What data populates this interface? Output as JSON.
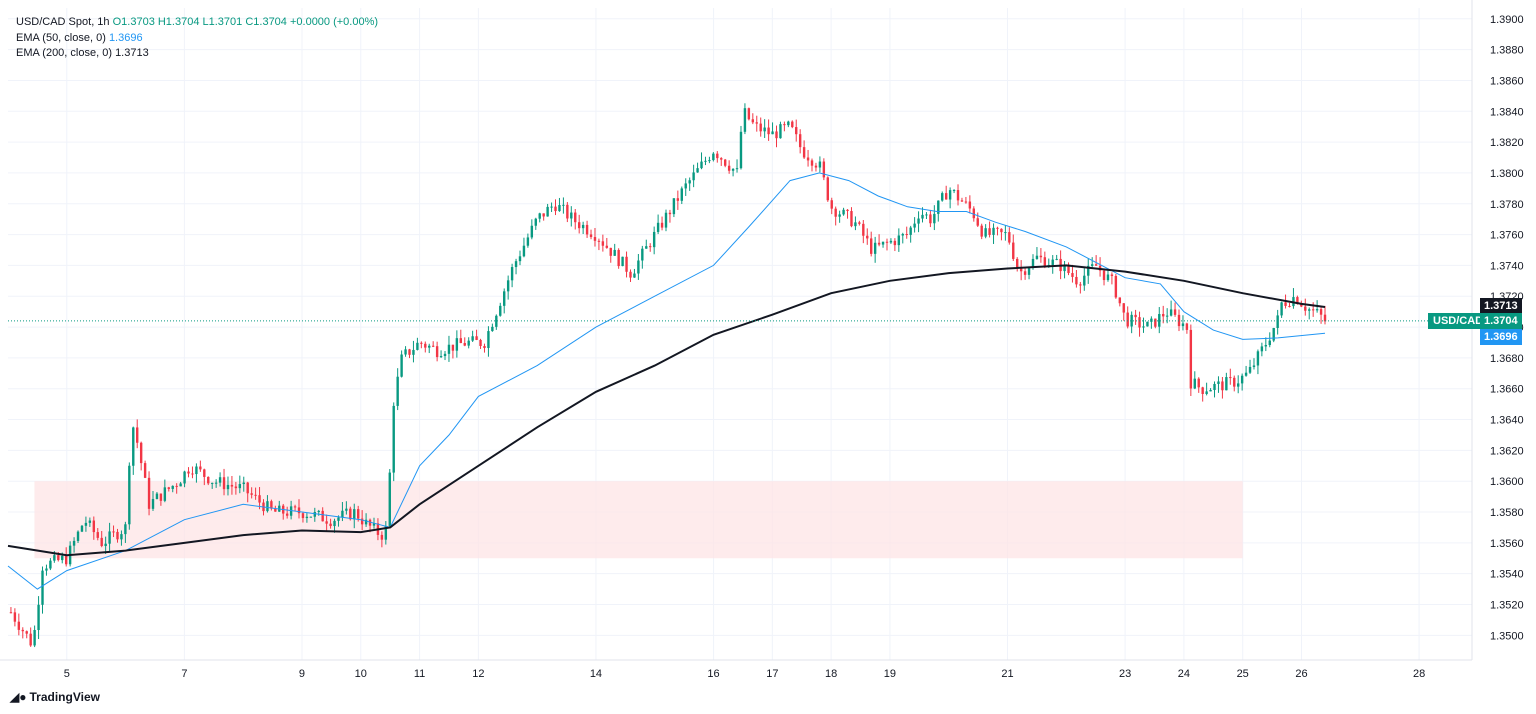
{
  "legend": {
    "symbol": "USD/CAD Spot, 1h",
    "ohlc": "O1.3703  H1.3704  L1.3701  C1.3704  +0.0000 (+0.00%)",
    "ema50_label": "EMA (50, close, 0)",
    "ema50_value": "1.3696",
    "ema200_label": "EMA (200, close, 0)",
    "ema200_value": "1.3713"
  },
  "tags": {
    "symbol": "USD/CAD",
    "price": "1.3704",
    "ema200": "1.3713",
    "ema50": "1.3696"
  },
  "branding": "TradingView",
  "colors": {
    "up": "#089981",
    "down": "#f23645",
    "ema50": "#2196f3",
    "ema200": "#131722",
    "zone": "#fde4e6",
    "grid": "#f0f3fa"
  },
  "chart_data": {
    "type": "candlestick",
    "title": "USD/CAD Spot, 1h",
    "ylim": [
      1.3484,
      1.3907
    ],
    "yticks": [
      "1.3500",
      "1.3520",
      "1.3540",
      "1.3560",
      "1.3580",
      "1.3600",
      "1.3620",
      "1.3640",
      "1.3660",
      "1.3680",
      "1.3700",
      "1.3720",
      "1.3740",
      "1.3760",
      "1.3780",
      "1.3800",
      "1.3820",
      "1.3840",
      "1.3860",
      "1.3880",
      "1.3900"
    ],
    "x_range_days": [
      4.0,
      28.9
    ],
    "xticks": [
      {
        "label": "5",
        "day": 5
      },
      {
        "label": "7",
        "day": 7
      },
      {
        "label": "9",
        "day": 9
      },
      {
        "label": "10",
        "day": 10
      },
      {
        "label": "11",
        "day": 11
      },
      {
        "label": "12",
        "day": 12
      },
      {
        "label": "14",
        "day": 14
      },
      {
        "label": "16",
        "day": 16
      },
      {
        "label": "17",
        "day": 17
      },
      {
        "label": "18",
        "day": 18
      },
      {
        "label": "19",
        "day": 19
      },
      {
        "label": "21",
        "day": 21
      },
      {
        "label": "23",
        "day": 23
      },
      {
        "label": "24",
        "day": 24
      },
      {
        "label": "25",
        "day": 25
      },
      {
        "label": "26",
        "day": 26
      },
      {
        "label": "28",
        "day": 28
      }
    ],
    "price_line": 1.3704,
    "support_zone": {
      "from_day": 4.45,
      "to_day": 25.0,
      "low": 1.355,
      "high": 1.36
    },
    "anchors": [
      [
        4.05,
        1.3515
      ],
      [
        4.4,
        1.3495
      ],
      [
        4.5,
        1.351
      ],
      [
        4.55,
        1.3545
      ],
      [
        5.0,
        1.355
      ],
      [
        5.3,
        1.3575
      ],
      [
        5.6,
        1.356
      ],
      [
        6.0,
        1.357
      ],
      [
        6.1,
        1.364
      ],
      [
        6.2,
        1.3625
      ],
      [
        6.4,
        1.3585
      ],
      [
        6.9,
        1.36
      ],
      [
        7.1,
        1.361
      ],
      [
        7.5,
        1.36
      ],
      [
        8.0,
        1.3595
      ],
      [
        8.5,
        1.358
      ],
      [
        9.0,
        1.358
      ],
      [
        9.5,
        1.3575
      ],
      [
        9.9,
        1.358
      ],
      [
        10.1,
        1.3572
      ],
      [
        10.35,
        1.3565
      ],
      [
        10.45,
        1.357
      ],
      [
        10.55,
        1.365
      ],
      [
        10.7,
        1.368
      ],
      [
        11.0,
        1.369
      ],
      [
        11.3,
        1.3685
      ],
      [
        11.8,
        1.369
      ],
      [
        12.1,
        1.369
      ],
      [
        12.3,
        1.371
      ],
      [
        12.6,
        1.374
      ],
      [
        13.0,
        1.377
      ],
      [
        13.3,
        1.378
      ],
      [
        13.6,
        1.377
      ],
      [
        14.0,
        1.376
      ],
      [
        14.6,
        1.3735
      ],
      [
        15.0,
        1.376
      ],
      [
        15.5,
        1.379
      ],
      [
        15.8,
        1.3805
      ],
      [
        16.0,
        1.3815
      ],
      [
        16.4,
        1.38
      ],
      [
        16.5,
        1.384
      ],
      [
        16.7,
        1.383
      ],
      [
        17.0,
        1.3825
      ],
      [
        17.3,
        1.383
      ],
      [
        17.5,
        1.3815
      ],
      [
        17.8,
        1.3805
      ],
      [
        18.0,
        1.3778
      ],
      [
        18.4,
        1.3768
      ],
      [
        18.7,
        1.375
      ],
      [
        19.0,
        1.3755
      ],
      [
        19.3,
        1.376
      ],
      [
        19.5,
        1.3775
      ],
      [
        19.7,
        1.377
      ],
      [
        20.0,
        1.379
      ],
      [
        20.4,
        1.3775
      ],
      [
        20.6,
        1.376
      ],
      [
        21.0,
        1.376
      ],
      [
        21.2,
        1.3735
      ],
      [
        21.5,
        1.3745
      ],
      [
        21.9,
        1.374
      ],
      [
        22.2,
        1.373
      ],
      [
        22.5,
        1.374
      ],
      [
        22.8,
        1.3728
      ],
      [
        23.0,
        1.3705
      ],
      [
        23.4,
        1.37
      ],
      [
        23.7,
        1.371
      ],
      [
        24.05,
        1.37
      ],
      [
        24.1,
        1.3665
      ],
      [
        24.3,
        1.366
      ],
      [
        24.6,
        1.3662
      ],
      [
        24.9,
        1.3665
      ],
      [
        25.1,
        1.367
      ],
      [
        25.4,
        1.369
      ],
      [
        25.6,
        1.3705
      ],
      [
        25.65,
        1.3715
      ],
      [
        25.9,
        1.372
      ],
      [
        26.1,
        1.3712
      ],
      [
        26.3,
        1.3708
      ],
      [
        26.4,
        1.3704
      ]
    ],
    "ema50": [
      [
        4.0,
        1.3545
      ],
      [
        4.5,
        1.353
      ],
      [
        5.0,
        1.3542
      ],
      [
        6.0,
        1.3555
      ],
      [
        7.0,
        1.3575
      ],
      [
        8.0,
        1.3585
      ],
      [
        9.0,
        1.358
      ],
      [
        10.0,
        1.3575
      ],
      [
        10.5,
        1.357
      ],
      [
        11.0,
        1.361
      ],
      [
        11.5,
        1.363
      ],
      [
        12.0,
        1.3655
      ],
      [
        13.0,
        1.3675
      ],
      [
        14.0,
        1.37
      ],
      [
        15.0,
        1.372
      ],
      [
        16.0,
        1.374
      ],
      [
        16.6,
        1.3765
      ],
      [
        17.3,
        1.3795
      ],
      [
        17.8,
        1.38
      ],
      [
        18.3,
        1.3795
      ],
      [
        18.8,
        1.3785
      ],
      [
        19.3,
        1.3778
      ],
      [
        19.8,
        1.3775
      ],
      [
        20.3,
        1.3775
      ],
      [
        20.8,
        1.3768
      ],
      [
        21.3,
        1.3762
      ],
      [
        22.0,
        1.3752
      ],
      [
        22.5,
        1.3742
      ],
      [
        23.0,
        1.3732
      ],
      [
        23.6,
        1.3728
      ],
      [
        24.0,
        1.371
      ],
      [
        24.5,
        1.3698
      ],
      [
        25.0,
        1.3692
      ],
      [
        25.6,
        1.3693
      ],
      [
        26.4,
        1.3696
      ]
    ],
    "ema200": [
      [
        4.0,
        1.3558
      ],
      [
        5.0,
        1.3552
      ],
      [
        6.0,
        1.3555
      ],
      [
        7.0,
        1.356
      ],
      [
        8.0,
        1.3565
      ],
      [
        9.0,
        1.3568
      ],
      [
        10.0,
        1.3567
      ],
      [
        10.5,
        1.357
      ],
      [
        11.0,
        1.3585
      ],
      [
        12.0,
        1.361
      ],
      [
        13.0,
        1.3635
      ],
      [
        14.0,
        1.3658
      ],
      [
        15.0,
        1.3675
      ],
      [
        16.0,
        1.3695
      ],
      [
        17.0,
        1.3708
      ],
      [
        18.0,
        1.3722
      ],
      [
        19.0,
        1.373
      ],
      [
        20.0,
        1.3735
      ],
      [
        21.0,
        1.3738
      ],
      [
        22.0,
        1.374
      ],
      [
        23.0,
        1.3736
      ],
      [
        24.0,
        1.373
      ],
      [
        25.0,
        1.3722
      ],
      [
        26.0,
        1.3715
      ],
      [
        26.4,
        1.3713
      ]
    ]
  }
}
